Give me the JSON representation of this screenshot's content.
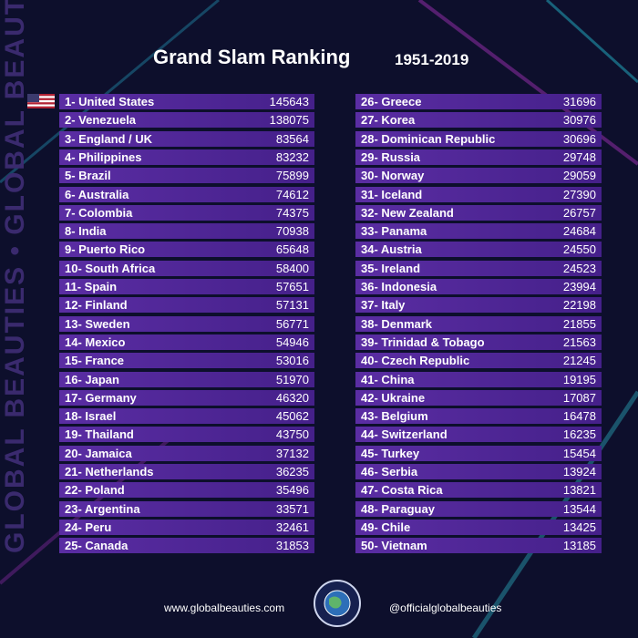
{
  "header": {
    "title": "Grand Slam Ranking",
    "years": "1951-2019"
  },
  "side_text": "GLOBAL BEAUTIES • GLOBAL BEAUTIES",
  "table": {
    "rows": [
      [
        "1- United States",
        145643
      ],
      [
        "2- Venezuela",
        138075
      ],
      [
        "3- England / UK",
        83564
      ],
      [
        "4- Philippines",
        83232
      ],
      [
        "5- Brazil",
        75899
      ],
      [
        "6- Australia",
        74612
      ],
      [
        "7- Colombia",
        74375
      ],
      [
        "8- India",
        70938
      ],
      [
        "9- Puerto Rico",
        65648
      ],
      [
        "10- South Africa",
        58400
      ],
      [
        "11- Spain",
        57651
      ],
      [
        "12- Finland",
        57131
      ],
      [
        "13- Sweden",
        56771
      ],
      [
        "14- Mexico",
        54946
      ],
      [
        "15- France",
        53016
      ],
      [
        "16- Japan",
        51970
      ],
      [
        "17- Germany",
        46320
      ],
      [
        "18- Israel",
        45062
      ],
      [
        "19- Thailand",
        43750
      ],
      [
        "20- Jamaica",
        37132
      ],
      [
        "21- Netherlands",
        36235
      ],
      [
        "22- Poland",
        35496
      ],
      [
        "23- Argentina",
        33571
      ],
      [
        "24- Peru",
        32461
      ],
      [
        "25- Canada",
        31853
      ],
      [
        "26- Greece",
        31696
      ],
      [
        "27- Korea",
        30976
      ],
      [
        "28- Dominican Republic",
        30696
      ],
      [
        "29- Russia",
        29748
      ],
      [
        "30- Norway",
        29059
      ],
      [
        "31- Iceland",
        27390
      ],
      [
        "32- New Zealand",
        26757
      ],
      [
        "33- Panama",
        24684
      ],
      [
        "34- Austria",
        24550
      ],
      [
        "35- Ireland",
        24523
      ],
      [
        "36- Indonesia",
        23994
      ],
      [
        "37- Italy",
        22198
      ],
      [
        "38- Denmark",
        21855
      ],
      [
        "39- Trinidad & Tobago",
        21563
      ],
      [
        "40- Czech Republic",
        21245
      ],
      [
        "41- China",
        19195
      ],
      [
        "42- Ukraine",
        17087
      ],
      [
        "43- Belgium",
        16478
      ],
      [
        "44- Switzerland",
        16235
      ],
      [
        "45- Turkey",
        15454
      ],
      [
        "46- Serbia",
        13924
      ],
      [
        "47- Costa Rica",
        13821
      ],
      [
        "48- Paraguay",
        13544
      ],
      [
        "49- Chile",
        13425
      ],
      [
        "50- Vietnam",
        13185
      ]
    ]
  },
  "footer": {
    "website": "www.globalbeauties.com",
    "social": "@officialglobalbeauties"
  }
}
